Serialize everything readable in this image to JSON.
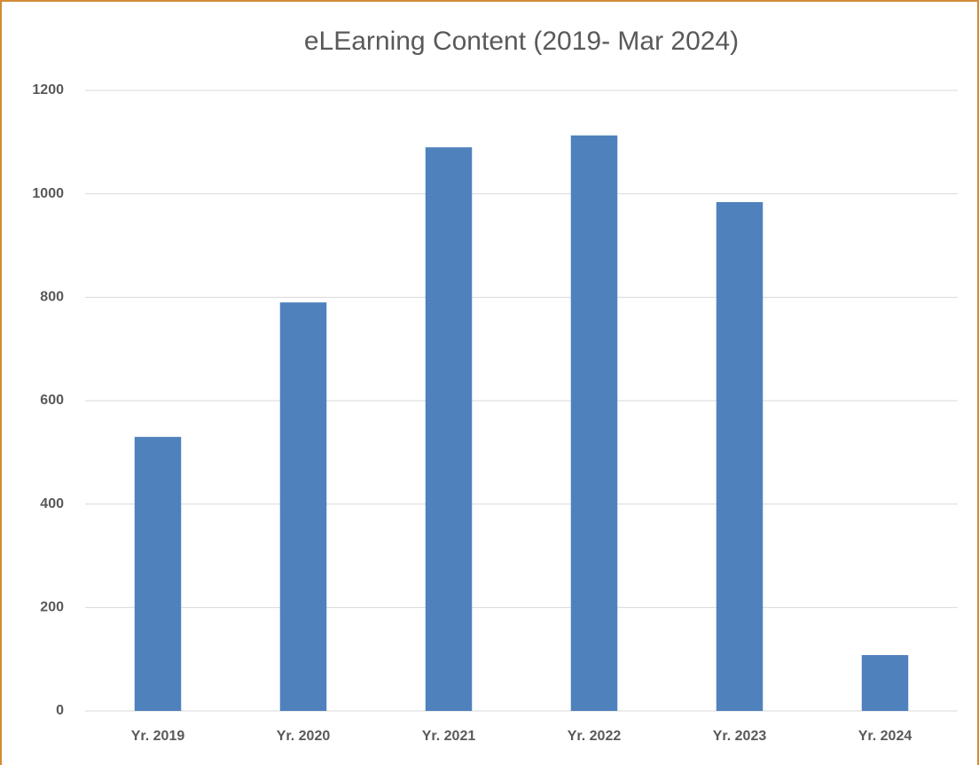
{
  "chart_data": {
    "type": "bar",
    "title": "eLEarning Content (2019- Mar 2024)",
    "categories": [
      "Yr. 2019",
      "Yr. 2020",
      "Yr. 2021",
      "Yr. 2022",
      "Yr. 2023",
      "Yr. 2024"
    ],
    "values": [
      530,
      790,
      1090,
      1113,
      984,
      108
    ],
    "color": "#4f81bd",
    "ylim": [
      0,
      1200
    ],
    "yticks": [
      0,
      200,
      400,
      600,
      800,
      1000,
      1200
    ],
    "grid": true
  }
}
